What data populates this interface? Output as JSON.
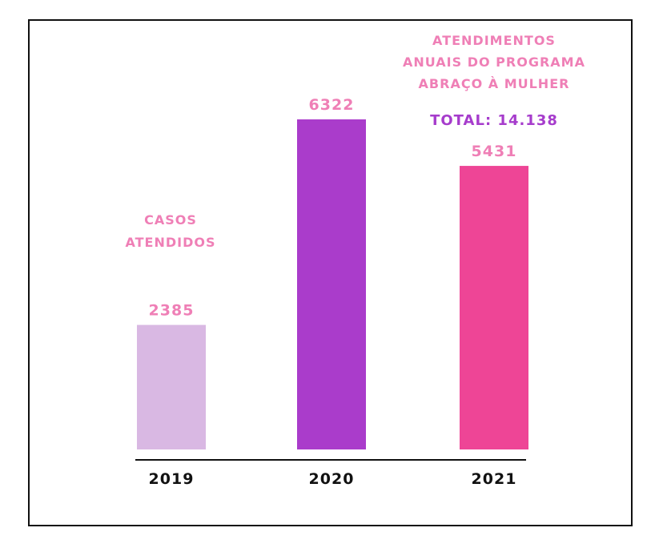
{
  "chart_data": {
    "type": "bar",
    "title_lines": [
      "ATENDIMENTOS",
      "ANUAIS DO PROGRAMA",
      "ABRAÇO À MULHER"
    ],
    "total_label": "TOTAL: 14.138",
    "series_label_lines": [
      "CASOS",
      "ATENDIDOS"
    ],
    "categories": [
      "2019",
      "2020",
      "2021"
    ],
    "values": [
      2385,
      6322,
      5431
    ],
    "value_labels": [
      "2385",
      "6322",
      "5431"
    ],
    "bar_colors": [
      "#d9b8e3",
      "#aa3ccb",
      "#ee4596"
    ],
    "label_color": "#ef7fb6",
    "total_color": "#a63ccc",
    "axis_color": "#111111",
    "ylim": [
      0,
      6322
    ],
    "grid": false,
    "legend": "none"
  }
}
